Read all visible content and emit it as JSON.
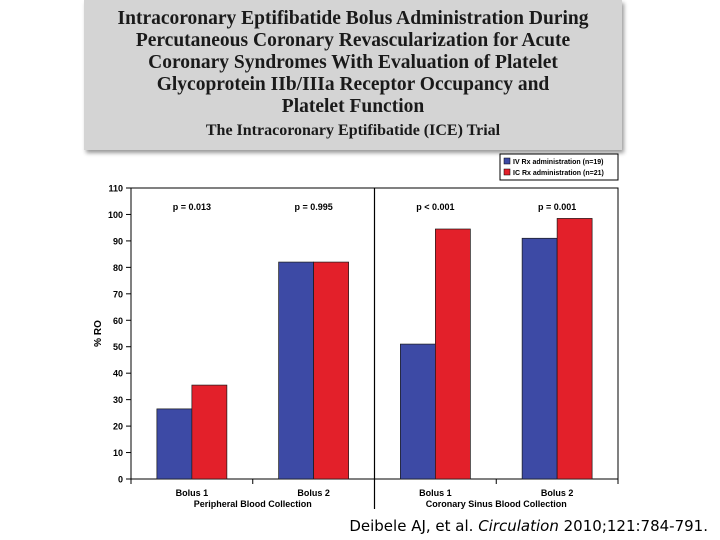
{
  "header": {
    "title_lines": [
      "Intracoronary Eptifibatide Bolus Administration During",
      "Percutaneous Coronary Revascularization for Acute",
      "Coronary Syndromes With Evaluation of Platelet",
      "Glycoprotein IIb/IIIa Receptor Occupancy and",
      "Platelet Function"
    ],
    "trial": "The Intracoronary Eptifibatide (ICE) Trial"
  },
  "citation": {
    "authors": "Deibele AJ, et al.",
    "journal": "Circulation",
    "details": "2010;121:784-791."
  },
  "colors": {
    "iv": "#3d4aa5",
    "ic": "#e3202a"
  },
  "chart_data": {
    "type": "bar",
    "title": "",
    "xlabel": "",
    "ylabel": "% RO",
    "ylim": [
      0,
      110
    ],
    "yticks": [
      0,
      10,
      20,
      30,
      40,
      50,
      60,
      70,
      80,
      90,
      100,
      110
    ],
    "categories": [
      "Bolus 1",
      "Bolus 2",
      "Bolus 1",
      "Bolus 2"
    ],
    "groups": [
      {
        "label": "Peripheral Blood Collection",
        "categories": [
          0,
          1
        ]
      },
      {
        "label": "Coronary Sinus Blood Collection",
        "categories": [
          2,
          3
        ]
      }
    ],
    "series": [
      {
        "name": "IV Rx administration (n=19)",
        "values": [
          26.5,
          82,
          51,
          91
        ]
      },
      {
        "name": "IC Rx administration (n=21)",
        "values": [
          35.5,
          82,
          94.5,
          98.5
        ]
      }
    ],
    "p_values": [
      "p = 0.013",
      "p = 0.995",
      "p < 0.001",
      "p = 0.001"
    ],
    "legend_position": "top-right",
    "grid": false
  }
}
